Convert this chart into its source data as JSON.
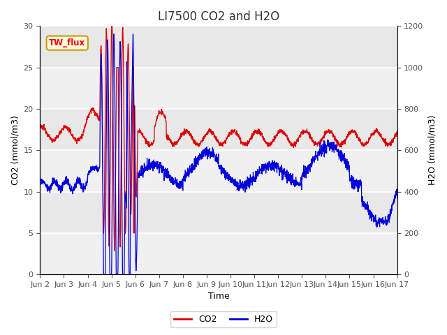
{
  "title": "LI7500 CO2 and H2O",
  "xlabel": "Time",
  "ylabel_left": "CO2 (mmol/m3)",
  "ylabel_right": "H2O (mmol/m3)",
  "ylim_left": [
    0,
    30
  ],
  "ylim_right": [
    0,
    1200
  ],
  "yticks_left": [
    0,
    5,
    10,
    15,
    20,
    25,
    30
  ],
  "yticks_right": [
    0,
    200,
    400,
    600,
    800,
    1000,
    1200
  ],
  "xtick_labels": [
    "Jun 2",
    "Jun 3",
    "Jun 4",
    "Jun 5",
    "Jun 6",
    "Jun 7",
    "Jun 8",
    "Jun 9",
    "Jun 10",
    "Jun 11",
    "Jun 12",
    "Jun 13",
    "Jun 14",
    "Jun 15",
    "Jun 16",
    "Jun 17"
  ],
  "annotation_text": "TW_flux",
  "bg_color": "#ffffff",
  "plot_bg_color": "#e8e8e8",
  "co2_color": "#dd0000",
  "h2o_color": "#0000dd",
  "legend_co2": "CO2",
  "legend_h2o": "H2O",
  "title_fontsize": 12,
  "axis_label_fontsize": 9,
  "tick_fontsize": 8
}
